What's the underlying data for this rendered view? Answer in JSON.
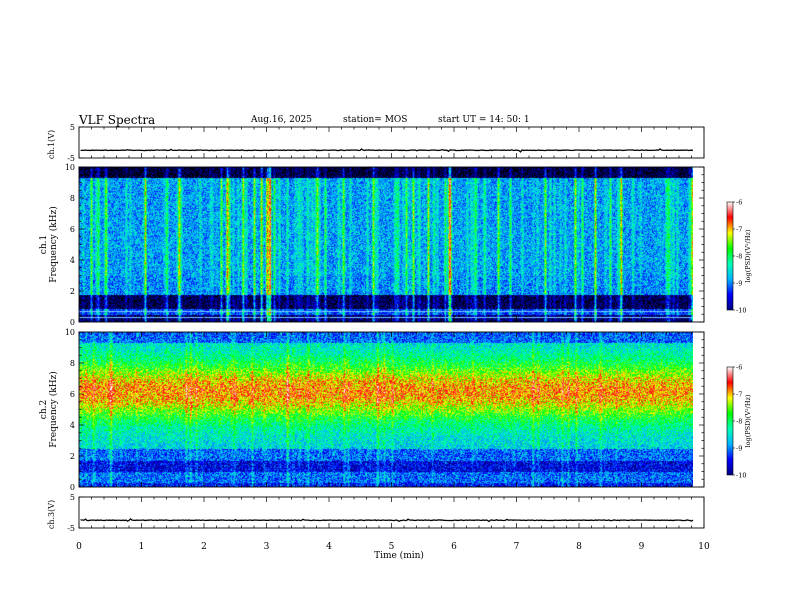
{
  "header": {
    "title": "VLF Spectra",
    "date": "Aug.16, 2025",
    "station": "station= MOS",
    "start": "start  UT  =   14: 50: 1"
  },
  "chart_data": [
    {
      "type": "line",
      "name": "ch1-voltage",
      "ylabel": "ch.1(V)",
      "ylim": [
        -5,
        5
      ],
      "yticks": [
        "5",
        "-5"
      ],
      "xlim": [
        0,
        10
      ],
      "x_end_data": 9.83,
      "baseline_value": -2.5
    },
    {
      "type": "heatmap",
      "name": "ch1-spectrogram",
      "ylabel": "ch.1\nFrequency (kHz)",
      "ylabel_lines": [
        "ch.1",
        "Frequency (kHz)"
      ],
      "ylim": [
        0,
        10
      ],
      "yticks": [
        "0",
        "2",
        "4",
        "6",
        "8",
        "10"
      ],
      "xlim": [
        0,
        10
      ],
      "x_end_data": 9.83,
      "colorbar": {
        "label": "log(PSD)(V²/Hz)",
        "range": [
          -10,
          -6
        ],
        "ticks": [
          "-6",
          "-7",
          "-8",
          "-9",
          "-10"
        ]
      }
    },
    {
      "type": "heatmap",
      "name": "ch2-spectrogram",
      "ylabel": "ch.2\nFrequency (kHz)",
      "ylabel_lines": [
        "ch.2",
        "Frequency (kHz)"
      ],
      "ylim": [
        0,
        10
      ],
      "yticks": [
        "0",
        "2",
        "4",
        "6",
        "8",
        "10"
      ],
      "xlim": [
        0,
        10
      ],
      "x_end_data": 9.83,
      "colorbar": {
        "label": "log(PSD)(V²/Hz)",
        "range": [
          -10,
          -6
        ],
        "ticks": [
          "-6",
          "-7",
          "-8",
          "-9",
          "-10"
        ]
      }
    },
    {
      "type": "line",
      "name": "ch3-voltage",
      "ylabel": "ch.3(V)",
      "ylim": [
        -5,
        5
      ],
      "yticks": [
        "5",
        "-5"
      ],
      "xlim": [
        0,
        10
      ],
      "x_end_data": 9.83,
      "baseline_value": -2.5,
      "xlabel": "Time (min)",
      "xticks": [
        "0",
        "1",
        "2",
        "3",
        "4",
        "5",
        "6",
        "7",
        "8",
        "9",
        "10"
      ]
    }
  ],
  "colors": {
    "colormap": [
      "#000000",
      "#000080",
      "#0000ff",
      "#00b4ff",
      "#00ffb4",
      "#00ff00",
      "#ffff00",
      "#ff0000",
      "#ffffff"
    ]
  }
}
